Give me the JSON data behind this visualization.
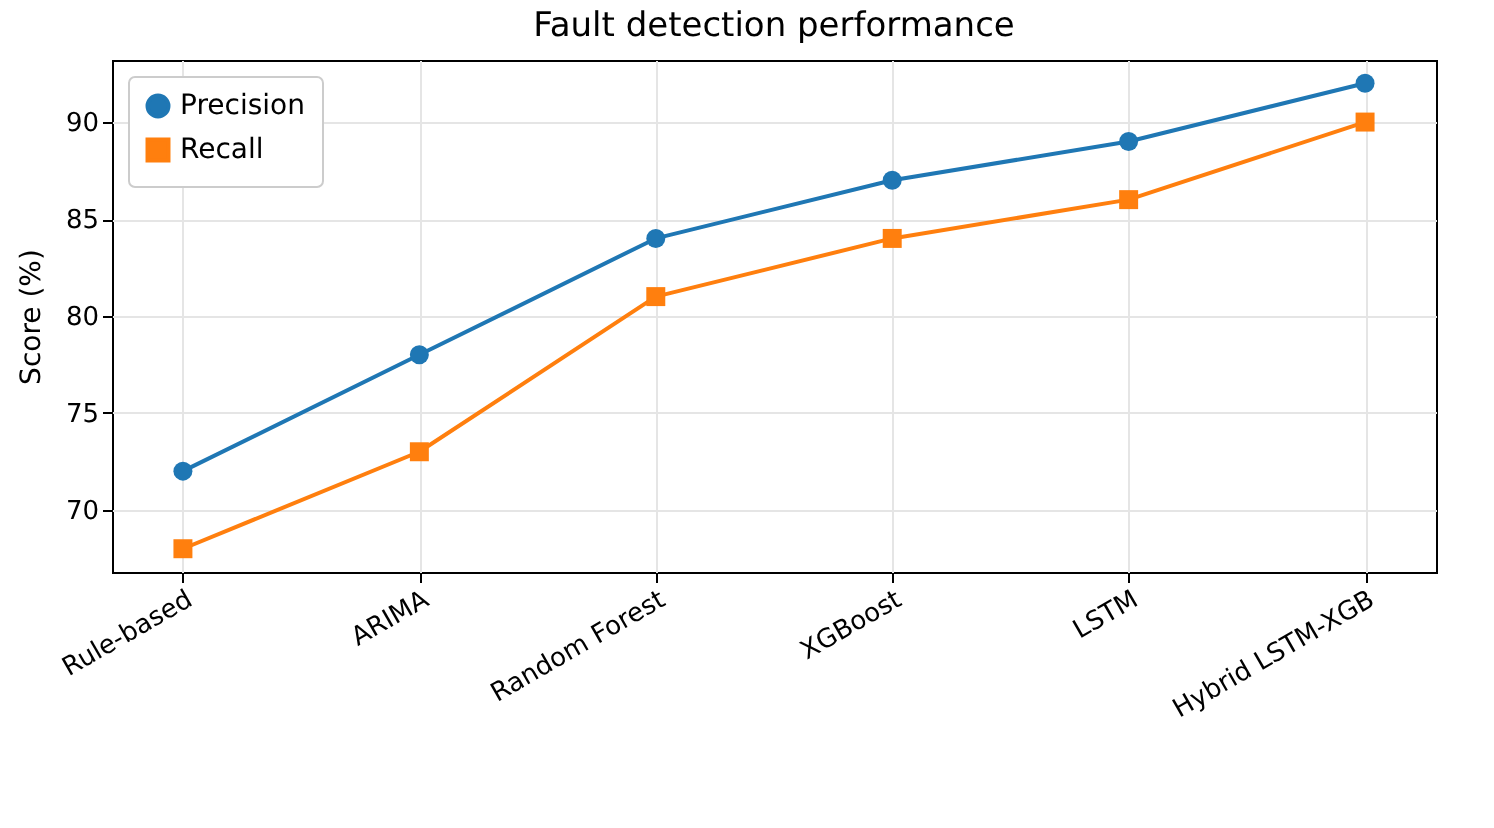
{
  "chart_data": {
    "type": "line",
    "title": "Fault detection performance",
    "ylabel": "Score (%)",
    "categories": [
      "Rule-based",
      "ARIMA",
      "Random Forest",
      "XGBoost",
      "LSTM",
      "Hybrid LSTM-XGB"
    ],
    "series": [
      {
        "name": "Precision",
        "color": "#1f77b4",
        "marker": "circle",
        "values": [
          72,
          78,
          84,
          87,
          89,
          92
        ]
      },
      {
        "name": "Recall",
        "color": "#ff7f0e",
        "marker": "square",
        "values": [
          68,
          73,
          81,
          84,
          86,
          90
        ]
      }
    ],
    "ylim": [
      66.8,
      93.2
    ],
    "yticks": [
      70,
      75,
      80,
      85,
      90
    ],
    "grid": true,
    "legend": "top left",
    "line_style": "solid"
  }
}
